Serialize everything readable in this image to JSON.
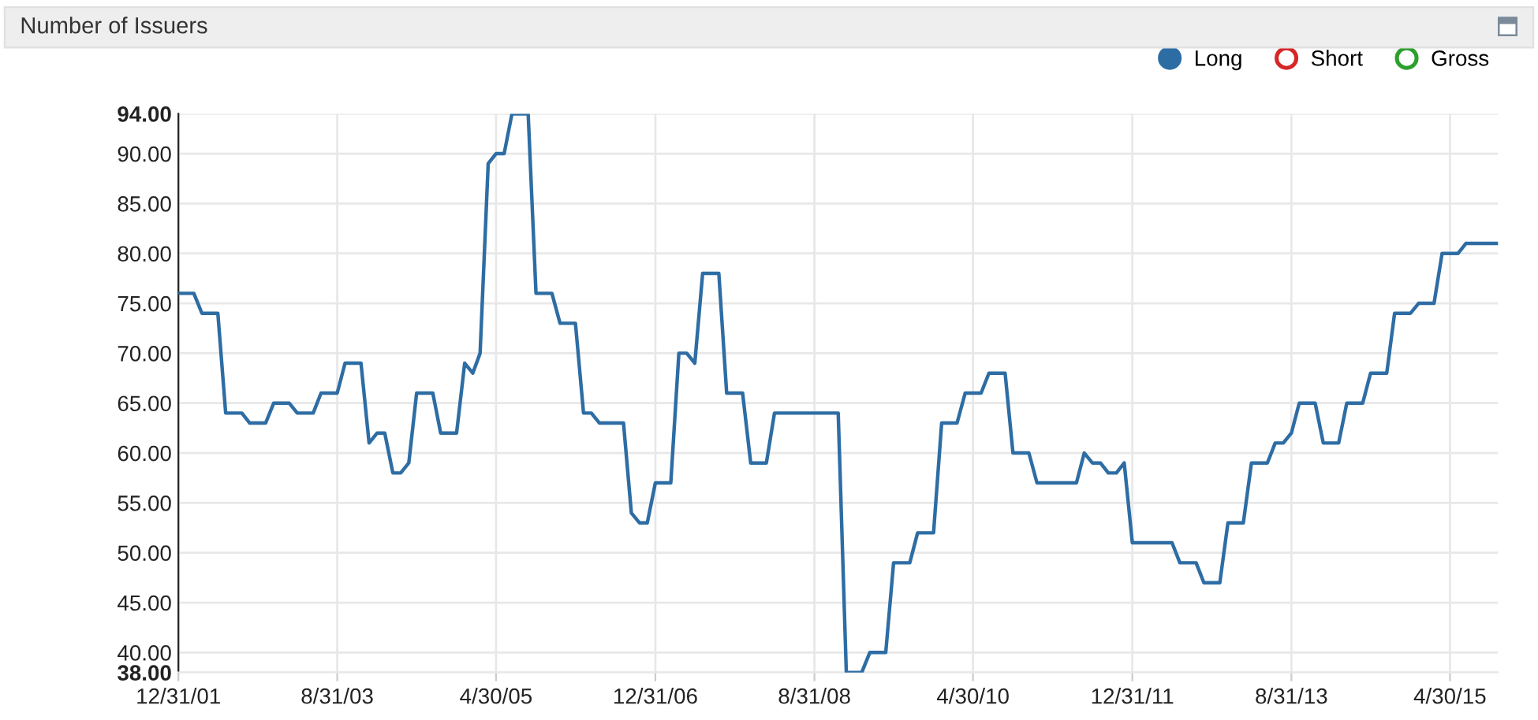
{
  "chart_data": {
    "type": "line",
    "title": "Number of Issuers",
    "xlim": [
      "2001-12-31",
      "2015-10-31"
    ],
    "xticks": [
      {
        "value": "2001-12-31",
        "label": "12/31/01"
      },
      {
        "value": "2003-08-31",
        "label": "8/31/03"
      },
      {
        "value": "2005-04-30",
        "label": "4/30/05"
      },
      {
        "value": "2006-12-31",
        "label": "12/31/06"
      },
      {
        "value": "2008-08-31",
        "label": "8/31/08"
      },
      {
        "value": "2010-04-30",
        "label": "4/30/10"
      },
      {
        "value": "2011-12-31",
        "label": "12/31/11"
      },
      {
        "value": "2013-08-31",
        "label": "8/31/13"
      },
      {
        "value": "2015-04-30",
        "label": "4/30/15"
      }
    ],
    "ylim": [
      38,
      94
    ],
    "yticks": [
      {
        "value": 38,
        "label": "38.00"
      },
      {
        "value": 40,
        "label": "40.00"
      },
      {
        "value": 45,
        "label": "45.00"
      },
      {
        "value": 50,
        "label": "50.00"
      },
      {
        "value": 55,
        "label": "55.00"
      },
      {
        "value": 60,
        "label": "60.00"
      },
      {
        "value": 65,
        "label": "65.00"
      },
      {
        "value": 70,
        "label": "70.00"
      },
      {
        "value": 75,
        "label": "75.00"
      },
      {
        "value": 80,
        "label": "80.00"
      },
      {
        "value": 85,
        "label": "85.00"
      },
      {
        "value": 90,
        "label": "90.00"
      },
      {
        "value": 94,
        "label": "94.00"
      }
    ],
    "grid": true,
    "legend": "top right",
    "marker": "none",
    "line_style": "solid",
    "series": [
      {
        "name": "Long",
        "color": "#2e6da4",
        "x": [
          "2001-12-31",
          "2002-02-28",
          "2002-03-31",
          "2002-05-31",
          "2002-06-30",
          "2002-08-31",
          "2002-09-30",
          "2002-11-30",
          "2002-12-31",
          "2003-02-28",
          "2003-03-31",
          "2003-05-31",
          "2003-06-30",
          "2003-08-31",
          "2003-09-30",
          "2003-11-30",
          "2003-12-31",
          "2004-01-31",
          "2004-02-29",
          "2004-03-31",
          "2004-04-30",
          "2004-05-31",
          "2004-06-30",
          "2004-08-31",
          "2004-09-30",
          "2004-11-30",
          "2004-12-31",
          "2005-01-31",
          "2005-02-28",
          "2005-03-31",
          "2005-04-30",
          "2005-05-31",
          "2005-06-30",
          "2005-08-31",
          "2005-09-30",
          "2005-11-30",
          "2005-12-31",
          "2006-02-28",
          "2006-03-31",
          "2006-04-30",
          "2006-05-31",
          "2006-08-31",
          "2006-09-30",
          "2006-10-31",
          "2006-11-30",
          "2006-12-31",
          "2007-02-28",
          "2007-03-31",
          "2007-04-30",
          "2007-05-31",
          "2007-06-30",
          "2007-08-31",
          "2007-09-30",
          "2007-11-30",
          "2007-12-31",
          "2008-02-29",
          "2008-03-31",
          "2008-11-30",
          "2008-12-31",
          "2009-02-28",
          "2009-03-31",
          "2009-05-31",
          "2009-06-30",
          "2009-08-31",
          "2009-09-30",
          "2009-11-30",
          "2009-12-31",
          "2010-02-28",
          "2010-03-31",
          "2010-05-31",
          "2010-06-30",
          "2010-08-31",
          "2010-09-30",
          "2010-11-30",
          "2010-12-31",
          "2011-05-31",
          "2011-06-30",
          "2011-07-31",
          "2011-08-31",
          "2011-09-30",
          "2011-10-31",
          "2011-11-30",
          "2011-12-31",
          "2012-05-31",
          "2012-06-30",
          "2012-08-31",
          "2012-09-30",
          "2012-11-30",
          "2012-12-31",
          "2013-02-28",
          "2013-03-31",
          "2013-05-31",
          "2013-06-30",
          "2013-07-31",
          "2013-08-31",
          "2013-09-30",
          "2013-11-30",
          "2013-12-31",
          "2014-02-28",
          "2014-03-31",
          "2014-05-31",
          "2014-06-30",
          "2014-08-31",
          "2014-09-30",
          "2014-11-30",
          "2014-12-31",
          "2015-02-28",
          "2015-03-31",
          "2015-05-31",
          "2015-06-30",
          "2015-10-31"
        ],
        "values": [
          76,
          76,
          74,
          74,
          64,
          64,
          63,
          63,
          65,
          65,
          64,
          64,
          66,
          66,
          69,
          69,
          61,
          62,
          62,
          58,
          58,
          59,
          66,
          66,
          62,
          62,
          69,
          68,
          70,
          89,
          90,
          90,
          94,
          94,
          76,
          76,
          73,
          73,
          64,
          64,
          63,
          63,
          54,
          53,
          53,
          57,
          57,
          70,
          70,
          69,
          78,
          78,
          66,
          66,
          59,
          59,
          64,
          64,
          38,
          38,
          40,
          40,
          49,
          49,
          52,
          52,
          63,
          63,
          66,
          66,
          68,
          68,
          60,
          60,
          57,
          57,
          60,
          59,
          59,
          58,
          58,
          59,
          51,
          51,
          49,
          49,
          47,
          47,
          53,
          53,
          59,
          59,
          61,
          61,
          62,
          65,
          65,
          61,
          61,
          65,
          65,
          68,
          68,
          74,
          74,
          75,
          75,
          80,
          80,
          81,
          81
        ]
      },
      {
        "name": "Short",
        "color": "#d62728"
      },
      {
        "name": "Gross",
        "color": "#2ca02c"
      }
    ]
  }
}
